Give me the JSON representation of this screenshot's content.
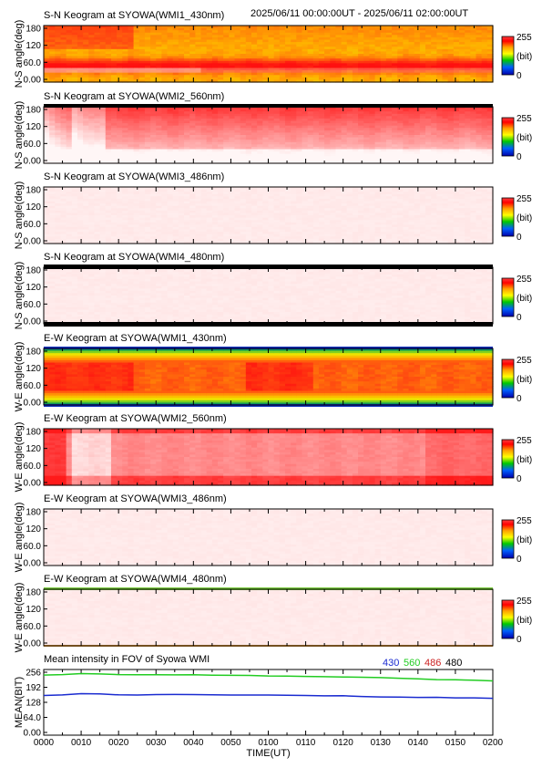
{
  "header": {
    "first_title": "S-N Keogram at SYOWA(WMI1_430nm)",
    "time_range": "2025/06/11 00:00:00UT - 2025/06/11 02:00:00UT"
  },
  "colorbar": {
    "max_label": "255",
    "unit_label": "(bit)",
    "min_label": "0"
  },
  "colors": {
    "palette": [
      "#0000aa",
      "#00c800",
      "#ffff00",
      "#ffa000",
      "#ff0000",
      "#fff0f0"
    ],
    "legend_430": "#1a2bd0",
    "legend_560": "#22cc22",
    "legend_486": "#cc2222",
    "legend_480": "#000000"
  },
  "keograms": [
    {
      "title": "S-N Keogram at SYOWA(WMI1_430nm)",
      "ylabel": "N-S angle(deg)",
      "style": "sn430"
    },
    {
      "title": "S-N Keogram at SYOWA(WMI2_560nm)",
      "ylabel": "N-S angle(deg)",
      "style": "sn560"
    },
    {
      "title": "S-N Keogram at SYOWA(WMI3_486nm)",
      "ylabel": "N-S angle(deg)",
      "style": "faint"
    },
    {
      "title": "S-N Keogram at SYOWA(WMI4_480nm)",
      "ylabel": "N-S angle(deg)",
      "style": "faint_black"
    },
    {
      "title": "E-W Keogram at SYOWA(WMI1_430nm)",
      "ylabel": "W-E angle(deg)",
      "style": "ew430"
    },
    {
      "title": "E-W Keogram at SYOWA(WMI2_560nm)",
      "ylabel": "W-E angle(deg)",
      "style": "ew560"
    },
    {
      "title": "E-W Keogram at SYOWA(WMI3_486nm)",
      "ylabel": "W-E angle(deg)",
      "style": "faint"
    },
    {
      "title": "E-W Keogram at SYOWA(WMI4_480nm)",
      "ylabel": "W-E angle(deg)",
      "style": "faint_green"
    }
  ],
  "keogram_yticks": [
    "180",
    "120",
    "60.0",
    "0.00"
  ],
  "mean_panel": {
    "title": "Mean intensity in FOV of Syowa WMI",
    "legend": [
      "430",
      "560",
      "486",
      "480"
    ],
    "ylabel": "MEAN(BIT)",
    "yticks": [
      "256",
      "192",
      "128",
      "64.0",
      "0.00"
    ]
  },
  "xaxis": {
    "label": "TIME(UT)",
    "ticks": [
      "0000",
      "0010",
      "0020",
      "0030",
      "0040",
      "0050",
      "0100",
      "0110",
      "0120",
      "0130",
      "0140",
      "0150",
      "0200"
    ]
  },
  "chart_data": {
    "type": "line",
    "title": "Mean intensity in FOV of Syowa WMI",
    "xlabel": "TIME(UT)",
    "ylabel": "MEAN(BIT)",
    "ylim": [
      0,
      256
    ],
    "x": [
      "0000",
      "0010",
      "0020",
      "0030",
      "0040",
      "0050",
      "0100",
      "0110",
      "0120",
      "0130",
      "0140",
      "0150",
      "0200"
    ],
    "series": [
      {
        "name": "430",
        "values": [
          157,
          165,
          160,
          161,
          161,
          159,
          159,
          157,
          156,
          151,
          149,
          147,
          145
        ]
      },
      {
        "name": "560",
        "values": [
          244,
          250,
          246,
          245,
          245,
          243,
          240,
          238,
          236,
          233,
          228,
          224,
          219
        ]
      }
    ]
  }
}
